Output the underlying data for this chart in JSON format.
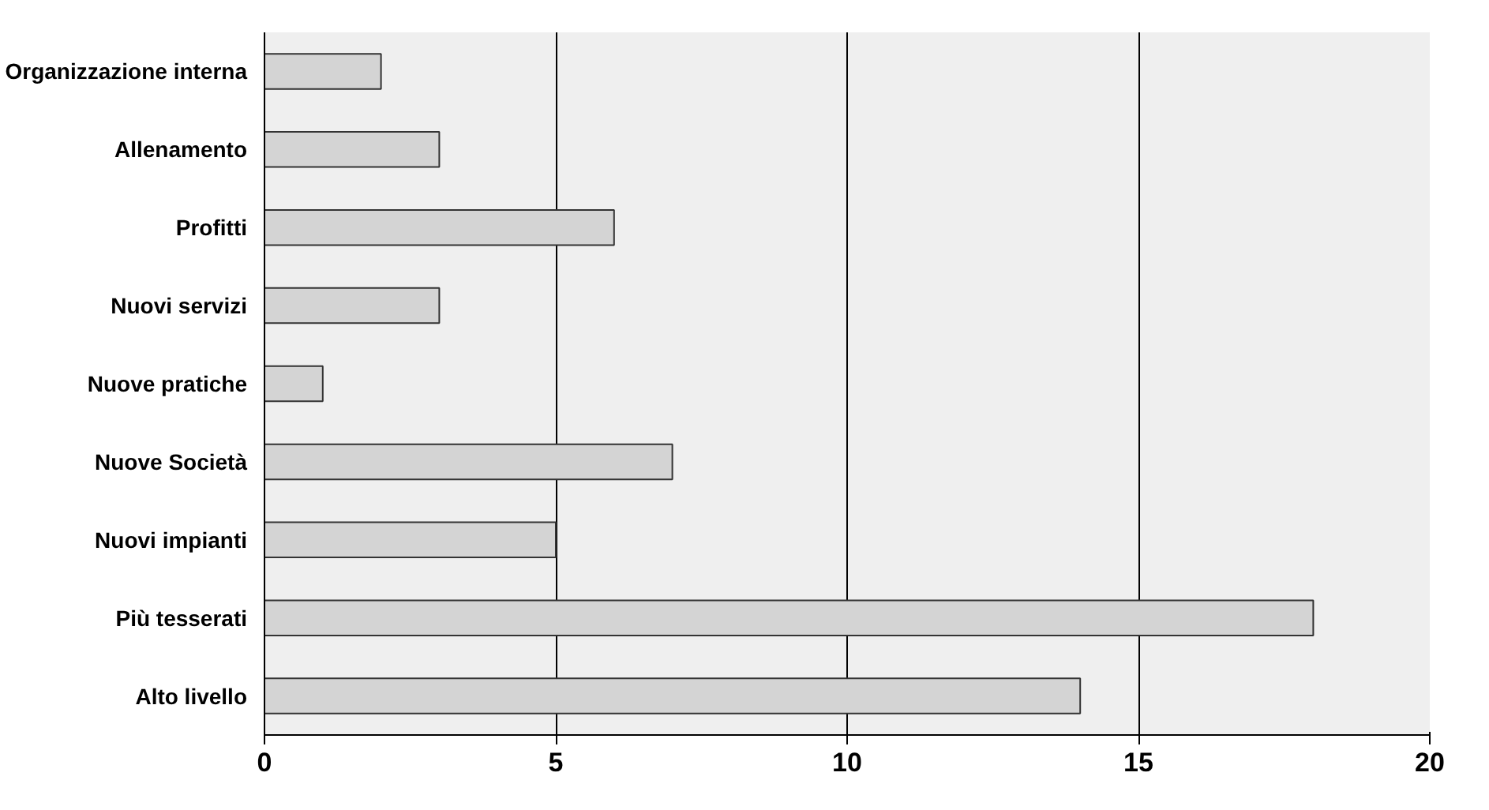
{
  "chart_data": {
    "type": "bar",
    "orientation": "horizontal",
    "categories": [
      "Organizzazione interna",
      "Allenamento",
      "Profitti",
      "Nuovi servizi",
      "Nuove pratiche",
      "Nuove Società",
      "Nuovi impianti",
      "Più tesserati",
      "Alto livello"
    ],
    "values": [
      2,
      3,
      6,
      3,
      1,
      7,
      5,
      18,
      14
    ],
    "color": "#d4d4d4",
    "xlim": [
      0,
      20
    ],
    "xticks": [
      0,
      5,
      10,
      15,
      20
    ],
    "grid": "x"
  }
}
